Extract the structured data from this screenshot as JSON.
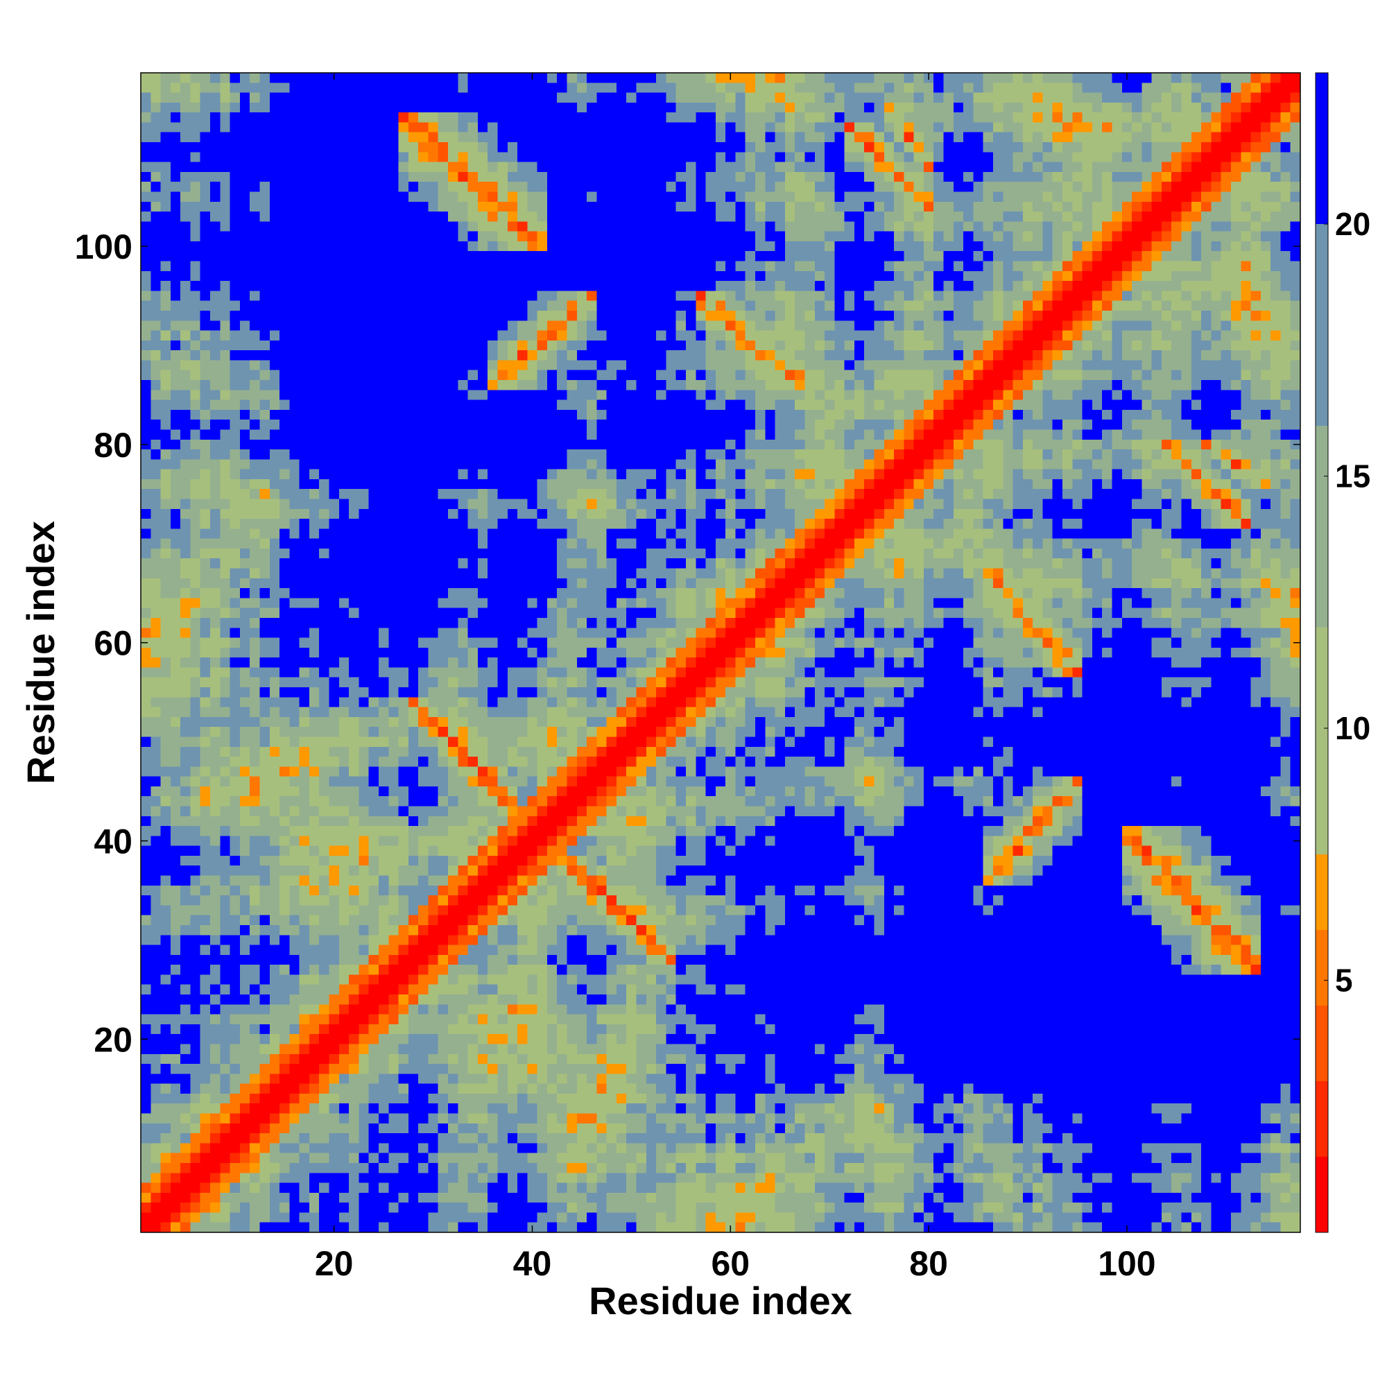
{
  "chart_data": {
    "type": "heatmap",
    "title": "",
    "xlabel": "Residue index",
    "ylabel": "Residue index",
    "n_residues": 117,
    "xlim": [
      1,
      117
    ],
    "ylim": [
      1,
      117
    ],
    "x_ticks": [
      20,
      40,
      60,
      80,
      100
    ],
    "y_ticks": [
      20,
      40,
      60,
      80,
      100
    ],
    "colorbar": {
      "ticks": [
        5,
        10,
        15,
        20
      ],
      "range": [
        0,
        23
      ],
      "levels": [
        0,
        1.5,
        3,
        4.5,
        6,
        7.5,
        12,
        16,
        20,
        23
      ],
      "colors": [
        "#ff0000",
        "#ff2a00",
        "#ff5500",
        "#ff7700",
        "#ff9900",
        "#a7bf7d",
        "#95b08f",
        "#6e94b0",
        "#0000ff"
      ]
    },
    "value_range_note_values": [
      0,
      23
    ],
    "structure": {
      "diagonal_value": 0,
      "near_diagonal_value": 5,
      "cutoff_value": 23,
      "helices": [
        [
          3,
          13
        ],
        [
          16,
          28
        ],
        [
          55,
          67
        ],
        [
          88,
          98
        ]
      ],
      "strand_contacts": [
        {
          "i": [
            28,
            36
          ],
          "j": [
            46,
            54
          ],
          "orientation": "anti"
        },
        {
          "i": [
            43,
            52
          ],
          "j": [
            30,
            38
          ],
          "orientation": "anti"
        },
        {
          "i": [
            57,
            67
          ],
          "j": [
            86,
            95
          ],
          "orientation": "anti"
        },
        {
          "i": [
            76,
            80
          ],
          "j": [
            108,
            114
          ],
          "orientation": "anti"
        },
        {
          "i": [
            36,
            46
          ],
          "j": [
            86,
            95
          ],
          "orientation": "par"
        },
        {
          "i": [
            100,
            113
          ],
          "j": [
            27,
            41
          ],
          "orientation": "anti"
        },
        {
          "i": [
            104,
            112
          ],
          "j": [
            72,
            80
          ],
          "orientation": "anti"
        }
      ]
    }
  }
}
